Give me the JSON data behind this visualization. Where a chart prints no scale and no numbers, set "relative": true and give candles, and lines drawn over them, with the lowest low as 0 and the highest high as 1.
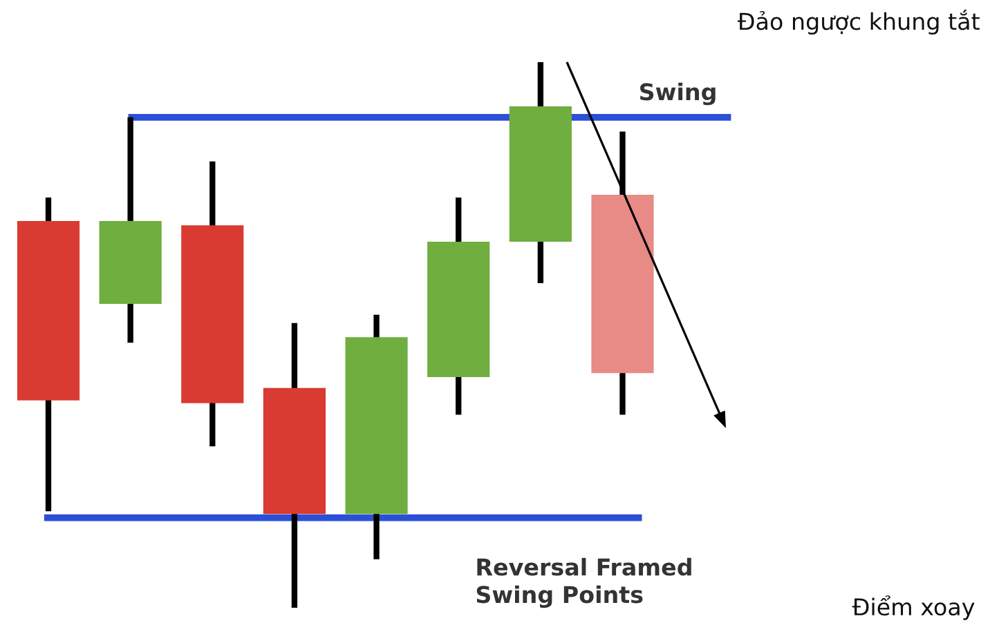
{
  "chart_data": {
    "type": "candlestick",
    "relative": true,
    "categories": [
      null,
      null,
      null,
      null,
      null,
      null,
      null,
      null
    ],
    "ohlc": [
      [
        0.709,
        0.752,
        0.177,
        0.38
      ],
      [
        0.557,
        0.899,
        0.486,
        0.709
      ],
      [
        0.701,
        0.818,
        0.296,
        0.375
      ],
      [
        0.403,
        0.522,
        0.0,
        0.172
      ],
      [
        0.172,
        0.537,
        0.089,
        0.496
      ],
      [
        0.423,
        0.752,
        0.354,
        0.671
      ],
      [
        0.671,
        1.0,
        0.595,
        0.919
      ],
      [
        0.757,
        0.873,
        0.354,
        0.43
      ]
    ],
    "colors": [
      "#d93a32",
      "#6fae3f",
      "#d93a32",
      "#d93a32",
      "#6fae3f",
      "#6fae3f",
      "#6fae3f",
      "#e88a85"
    ],
    "ref_lines": [
      {
        "axis": "y",
        "value": 0.899,
        "label": "Swing",
        "color": "#2b4fd6"
      },
      {
        "axis": "y",
        "value": 0.165,
        "label": "Reversal Framed\nSwing Points",
        "color": "#2b4fd6"
      }
    ],
    "annotations": [
      "Đảo ngược khung tắt",
      "Điểm xoay"
    ],
    "legend": false
  }
}
